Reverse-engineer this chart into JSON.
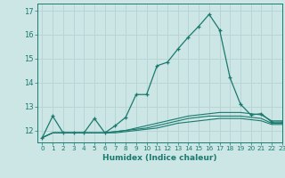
{
  "xlabel": "Humidex (Indice chaleur)",
  "xlim": [
    -0.5,
    23
  ],
  "ylim": [
    11.5,
    17.3
  ],
  "yticks": [
    12,
    13,
    14,
    15,
    16,
    17
  ],
  "xticks": [
    0,
    1,
    2,
    3,
    4,
    5,
    6,
    7,
    8,
    9,
    10,
    11,
    12,
    13,
    14,
    15,
    16,
    17,
    18,
    19,
    20,
    21,
    22,
    23
  ],
  "xtick_labels": [
    "0",
    "1",
    "2",
    "3",
    "4",
    "5",
    "6",
    "7",
    "8",
    "9",
    "10",
    "11",
    "12",
    "13",
    "14",
    "15",
    "16",
    "17",
    "18",
    "19",
    "20",
    "21",
    "22",
    "23"
  ],
  "bg_color": "#cce5e5",
  "grid_color": "#b8d4d4",
  "line_color": "#1a7a6e",
  "series": [
    [
      11.7,
      12.6,
      11.9,
      11.9,
      11.9,
      12.5,
      11.9,
      12.2,
      12.55,
      13.5,
      13.5,
      14.7,
      14.85,
      15.4,
      15.9,
      16.35,
      16.85,
      16.2,
      14.2,
      13.1,
      12.65,
      12.7,
      12.35,
      12.35
    ],
    [
      11.7,
      11.9,
      11.9,
      11.9,
      11.9,
      11.9,
      11.9,
      11.95,
      12.0,
      12.1,
      12.2,
      12.3,
      12.4,
      12.5,
      12.6,
      12.65,
      12.7,
      12.75,
      12.75,
      12.75,
      12.7,
      12.65,
      12.4,
      12.4
    ],
    [
      11.7,
      11.9,
      11.9,
      11.9,
      11.9,
      11.9,
      11.9,
      11.95,
      12.0,
      12.05,
      12.1,
      12.2,
      12.3,
      12.4,
      12.5,
      12.55,
      12.6,
      12.6,
      12.6,
      12.6,
      12.55,
      12.5,
      12.3,
      12.3
    ],
    [
      11.7,
      11.9,
      11.9,
      11.9,
      11.9,
      11.9,
      11.9,
      11.9,
      11.95,
      12.0,
      12.05,
      12.1,
      12.2,
      12.3,
      12.35,
      12.4,
      12.45,
      12.5,
      12.5,
      12.5,
      12.45,
      12.4,
      12.25,
      12.25
    ]
  ]
}
